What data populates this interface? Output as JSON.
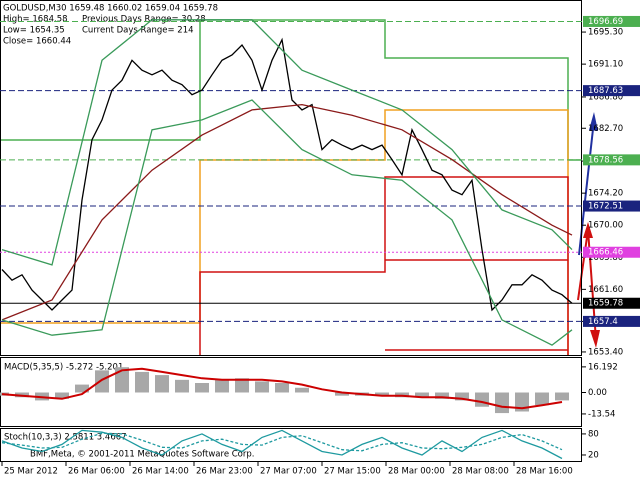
{
  "chart_data": [
    {
      "type": "line",
      "quote": "GOLDUSD,M30  1659.48 1660.02 1659.04 1659.78",
      "info": [
        "High= 1684.58",
        "Previous Days Range= 30.28",
        "Low= 1654.35",
        "Current Days Range= 214",
        "Close= 1660.44"
      ],
      "xlim": [
        -0.25,
        72.5
      ],
      "ylim": [
        1653.0,
        1699.5
      ],
      "yticks": [
        {
          "value": 1695.3,
          "label": "1695.30"
        },
        {
          "value": 1691.1,
          "label": "1691.10"
        },
        {
          "value": 1686.8,
          "label": "1686.80"
        },
        {
          "value": 1682.7,
          "label": "1682.70"
        },
        {
          "value": 1678.4,
          "label": "1678.40"
        },
        {
          "value": 1674.2,
          "label": "1674.20"
        },
        {
          "value": 1670.0,
          "label": "1670.00"
        },
        {
          "value": 1665.8,
          "label": "1665.80"
        },
        {
          "value": 1661.6,
          "label": "1661.60"
        },
        {
          "value": 1657.4,
          "label": "1657.40"
        },
        {
          "value": 1653.4,
          "label": "1653.40"
        }
      ],
      "levels": [
        {
          "price": 1696.69,
          "color": "#4caf50",
          "line": "dashed"
        },
        {
          "price": 1687.63,
          "color": "#1a237e",
          "line": "dashed"
        },
        {
          "price": 1678.56,
          "color": "#4caf50",
          "line": "dashed"
        },
        {
          "price": 1672.51,
          "color": "#1a237e",
          "line": "dashed"
        },
        {
          "price": 1666.46,
          "color": "#e040e0",
          "line": "dotted"
        },
        {
          "price": 1659.78,
          "color": "#000000",
          "line": "solid"
        },
        {
          "price": 1657.4,
          "color": "#1a237e",
          "line": "dashed"
        }
      ],
      "series": [
        {
          "color": "#000000",
          "x": [
            0,
            1.25,
            2.5,
            3.75,
            5,
            6.25,
            7.5,
            8.75,
            10,
            11.25,
            12.5,
            13.75,
            15,
            16.25,
            17.5,
            18.75,
            20,
            21.25,
            22.5,
            23.75,
            25,
            26.25,
            27.5,
            28.75,
            30,
            31.25,
            32.5,
            33.75,
            35,
            36.25,
            37.5,
            38.75,
            40,
            41.25,
            42.5,
            43.75,
            45,
            46.25,
            47.5,
            48.75,
            50,
            51.25,
            52.5,
            53.75,
            55,
            56.25,
            57.5,
            58.75,
            60,
            61.25,
            62.5,
            63.75,
            65,
            66.25,
            67.5,
            68.75,
            70,
            71.25
          ],
          "values": [
            1664.2,
            1662.8,
            1663.5,
            1661.5,
            1660.2,
            1658.9,
            1660.2,
            1661.5,
            1673.3,
            1681.2,
            1683.8,
            1687.7,
            1689.0,
            1691.6,
            1690.3,
            1689.7,
            1690.3,
            1689.0,
            1688.4,
            1687.1,
            1687.7,
            1689.7,
            1691.6,
            1692.3,
            1693.6,
            1691.6,
            1687.7,
            1691.6,
            1694.3,
            1686.4,
            1685.1,
            1685.8,
            1679.9,
            1681.2,
            1680.5,
            1679.9,
            1680.5,
            1679.9,
            1680.5,
            1678.6,
            1676.6,
            1682.5,
            1679.9,
            1677.2,
            1676.6,
            1674.6,
            1674.0,
            1675.9,
            1666.8,
            1658.9,
            1660.2,
            1662.2,
            1662.2,
            1663.5,
            1662.8,
            1661.5,
            1660.9,
            1659.78
          ]
        },
        {
          "color": "#8b1a1a",
          "x": [
            0,
            6.25,
            12.5,
            18.75,
            25,
            31.25,
            37.5,
            43.75,
            50,
            56.25,
            62.5,
            68.75,
            71.25
          ],
          "values": [
            1657.6,
            1660.2,
            1670.7,
            1677.2,
            1681.8,
            1685.1,
            1685.8,
            1684.4,
            1682.5,
            1678.6,
            1674.0,
            1670.0,
            1668.7
          ]
        },
        {
          "color": "#3a9a5a",
          "x": [
            0,
            6.25,
            12.5,
            18.75,
            25,
            31.25,
            37.5,
            43.75,
            50,
            56.25,
            62.5,
            68.75,
            71.25
          ],
          "values": [
            1666.8,
            1664.8,
            1691.6,
            1696.9,
            1696.9,
            1696.9,
            1690.3,
            1687.7,
            1685.1,
            1679.9,
            1672.0,
            1669.4,
            1666.8
          ]
        },
        {
          "color": "#3a9a5a",
          "x": [
            0,
            6.25,
            12.5,
            18.75,
            25,
            31.25,
            37.5,
            43.75,
            50,
            56.25,
            62.5,
            68.75,
            71.25
          ],
          "values": [
            1657.6,
            1655.6,
            1656.3,
            1682.5,
            1683.8,
            1686.4,
            1679.9,
            1676.6,
            1675.9,
            1670.7,
            1657.6,
            1654.3,
            1656.3
          ]
        }
      ]
    },
    {
      "type": "macd",
      "title": "MACD(5,35,5) -5.272 -5.201",
      "xlim": [
        -0.25,
        72.5
      ],
      "ylim": [
        -21.8,
        21.8
      ],
      "yticks": [
        16.192,
        {
          "value": 0,
          "label": "0.00"
        },
        -13.54
      ],
      "x": [
        0,
        2.5,
        5,
        7.5,
        10,
        12.5,
        15,
        17.5,
        20,
        22.5,
        25,
        27.5,
        30,
        32.5,
        35,
        37.5,
        40,
        42.5,
        45,
        47.5,
        50,
        52.5,
        55,
        57.5,
        60,
        62.5,
        65,
        67.5,
        70
      ],
      "series": [
        {
          "color": "#a8a8a8",
          "values": [
            -2,
            -3,
            -5,
            -4,
            5,
            14,
            16,
            13,
            11,
            8,
            6,
            8,
            9,
            7,
            6,
            3,
            0,
            -2,
            -2,
            -2,
            -3,
            -3,
            -4,
            -5,
            -9,
            -13,
            -12,
            -8,
            -5
          ]
        },
        {
          "color": "#cc0000",
          "values": [
            -1,
            -2,
            -3,
            -4,
            -1,
            8,
            14,
            15,
            13,
            11,
            9,
            8,
            8,
            8,
            7,
            5,
            2,
            0,
            -1,
            -2,
            -2,
            -3,
            -3,
            -4,
            -6,
            -9,
            -10,
            -8,
            -6
          ]
        }
      ]
    },
    {
      "type": "stoch",
      "title": "Stoch(10,3,3) 2.5811 3.4667",
      "footer": "BMF,Meta, © 2001-2011 MetaQuotes Software Corp.",
      "xlim": [
        -0.25,
        72.5
      ],
      "ylim": [
        0,
        94
      ],
      "yticks": [
        80,
        20
      ],
      "xticks": [
        {
          "value": 0,
          "label": "25 Mar 2012"
        },
        {
          "value": 8,
          "label": "26 Mar 06:00"
        },
        {
          "value": 16,
          "label": "26 Mar 14:00"
        },
        {
          "value": 24,
          "label": "26 Mar 23:00"
        },
        {
          "value": 32,
          "label": "27 Mar 07:00"
        },
        {
          "value": 40,
          "label": "27 Mar 15:00"
        },
        {
          "value": 48,
          "label": "28 Mar 00:00"
        },
        {
          "value": 56,
          "label": "28 Mar 08:00"
        },
        {
          "value": 64,
          "label": "28 Mar 16:00"
        }
      ],
      "x": [
        0,
        2.5,
        5,
        7.5,
        10,
        12.5,
        15,
        17.5,
        20,
        22.5,
        25,
        27.5,
        30,
        32.5,
        35,
        37.5,
        40,
        42.5,
        45,
        47.5,
        50,
        52.5,
        55,
        57.5,
        60,
        62.5,
        65,
        67.5,
        70
      ],
      "series": [
        {
          "color": "#1e9aa0",
          "values": [
            60,
            40,
            30,
            50,
            90,
            85,
            70,
            40,
            20,
            60,
            80,
            50,
            30,
            70,
            90,
            60,
            30,
            20,
            50,
            70,
            40,
            20,
            60,
            30,
            70,
            90,
            60,
            40,
            10
          ]
        },
        {
          "color": "#1e9aa0",
          "values": [
            55,
            48,
            40,
            42,
            65,
            82,
            80,
            62,
            42,
            40,
            60,
            65,
            50,
            48,
            70,
            75,
            55,
            35,
            32,
            50,
            55,
            40,
            38,
            42,
            50,
            70,
            78,
            60,
            35
          ]
        }
      ]
    }
  ]
}
